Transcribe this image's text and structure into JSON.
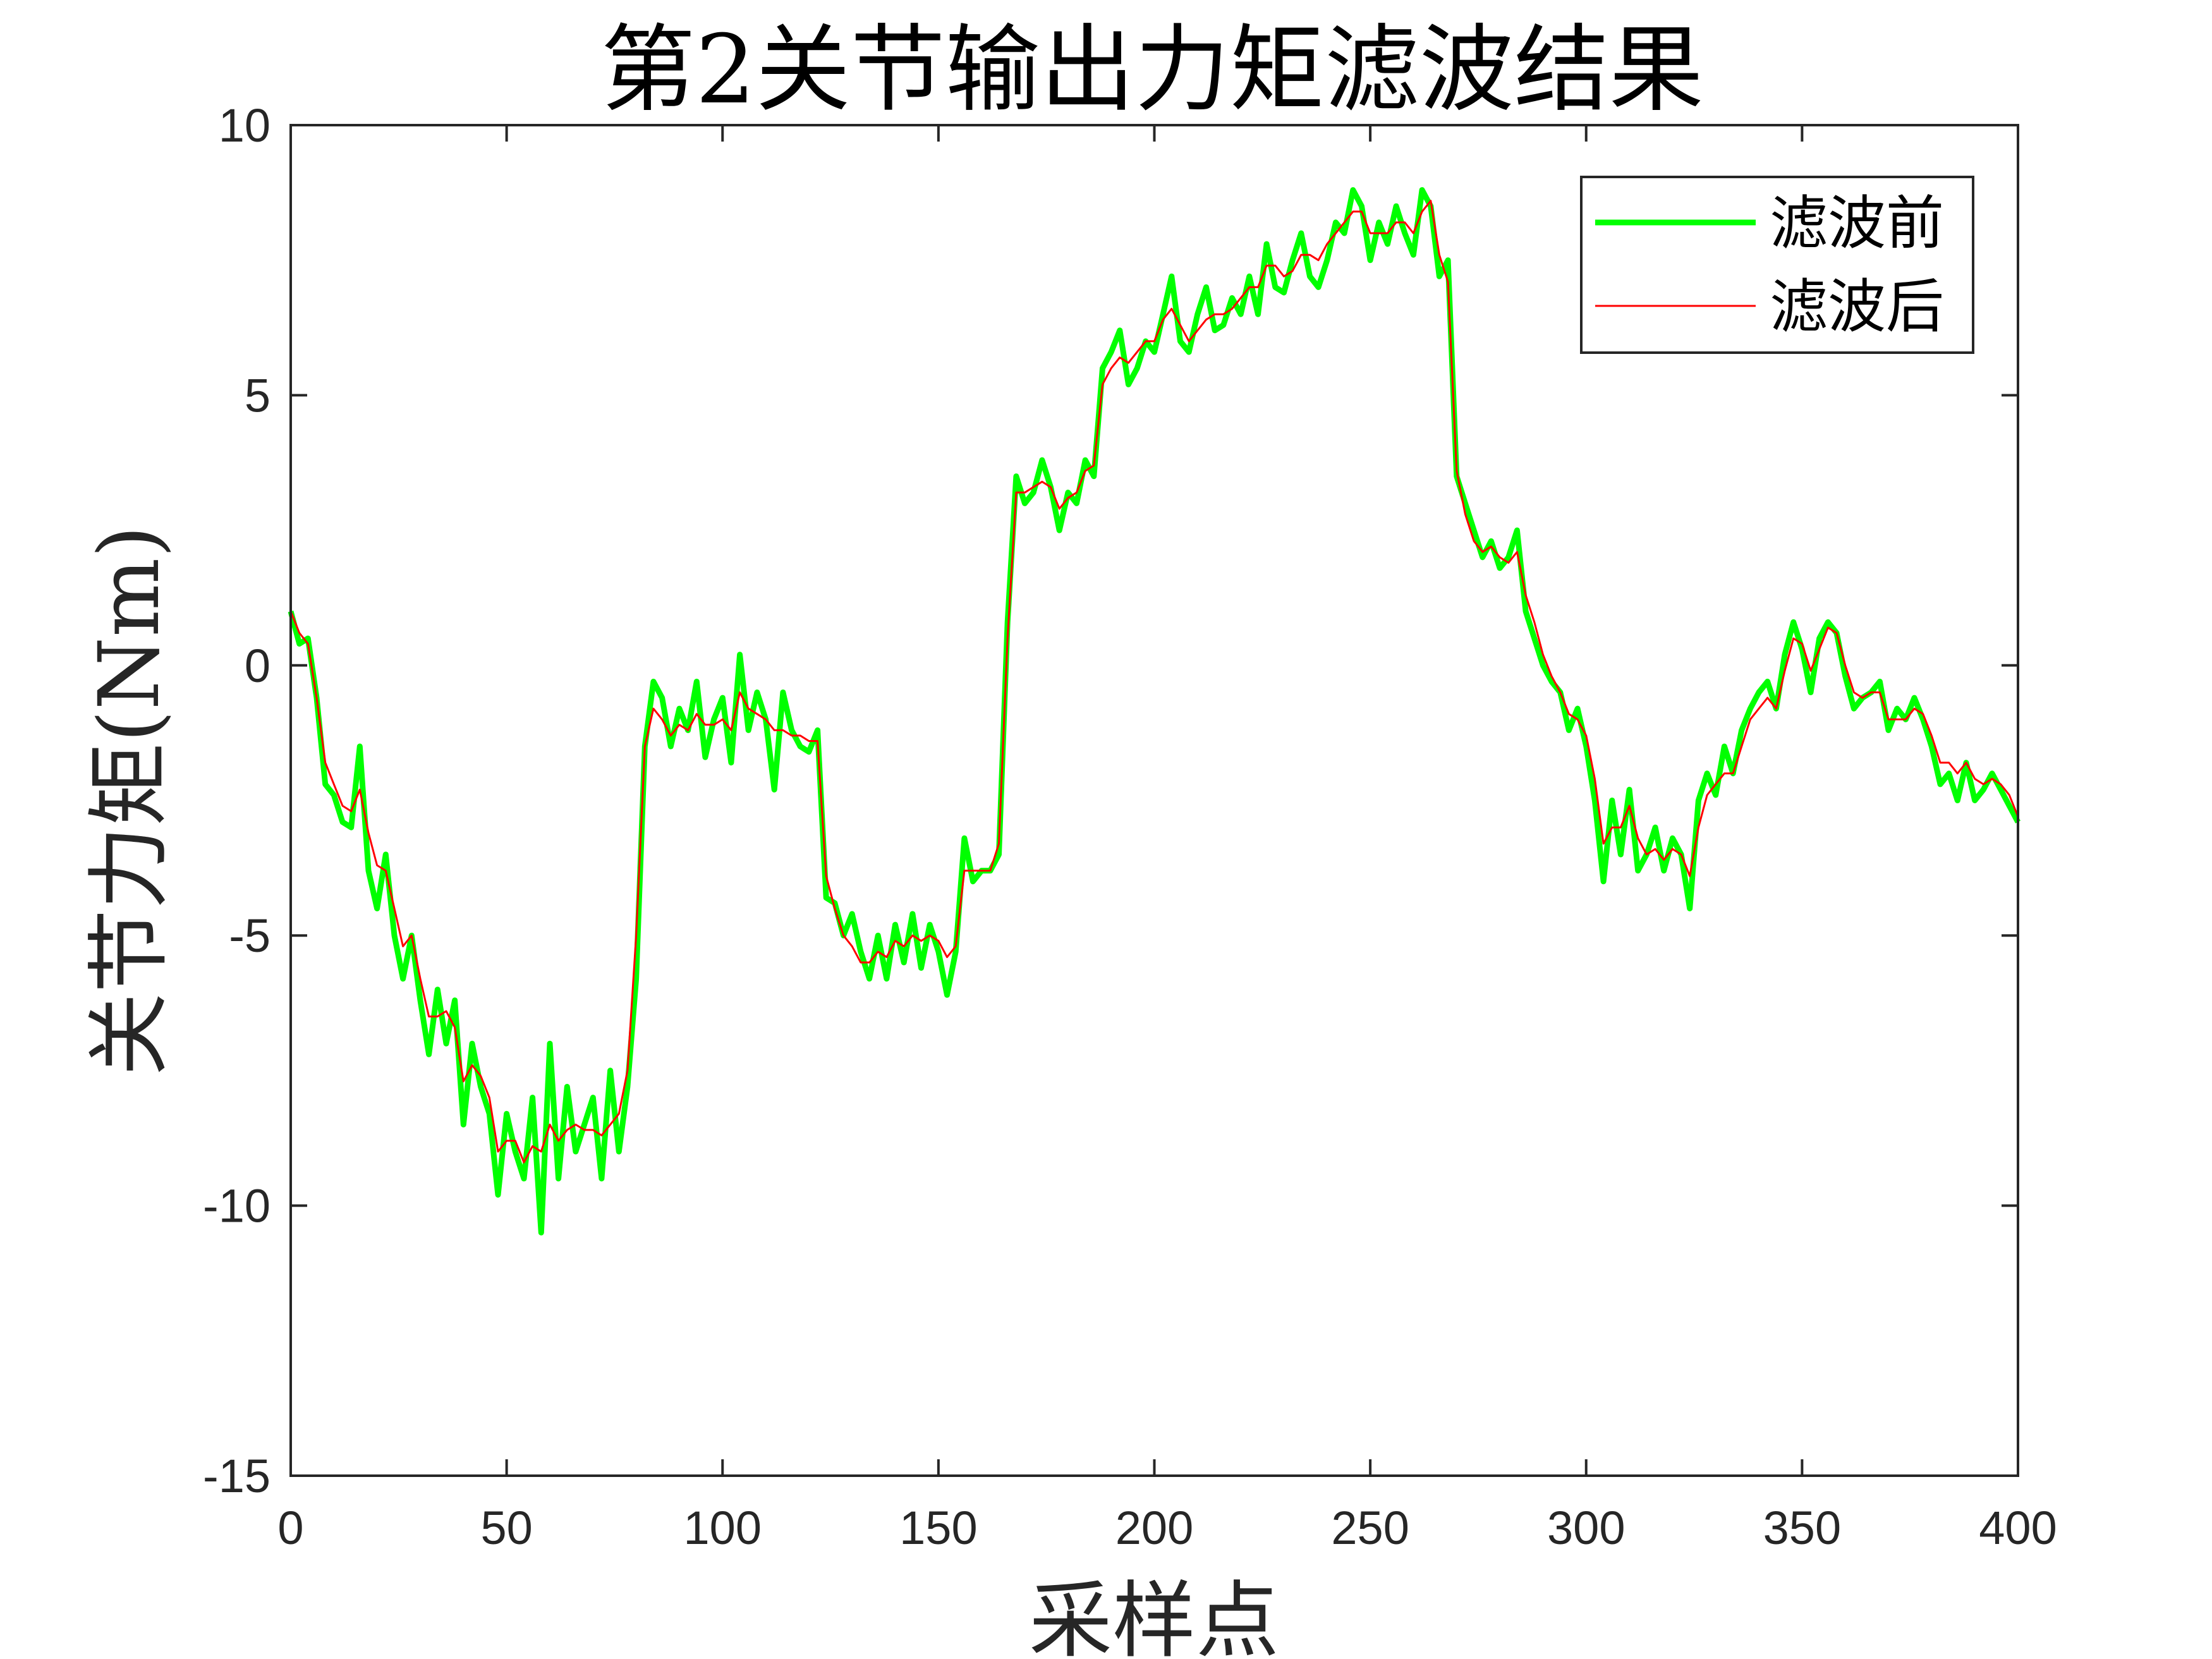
{
  "chart_data": {
    "type": "line",
    "title": "第2关节输出力矩滤波结果",
    "xlabel": "采样点",
    "ylabel": "关节力矩(Nm)",
    "xlim": [
      0,
      400
    ],
    "ylim": [
      -15,
      10
    ],
    "xticks": [
      0,
      50,
      100,
      150,
      200,
      250,
      300,
      350,
      400
    ],
    "yticks": [
      -15,
      -10,
      -5,
      0,
      5,
      10
    ],
    "grid": false,
    "legend_position": "top-right",
    "series": [
      {
        "name": "滤波前",
        "color": "#00FF00",
        "x_step": 2,
        "values": [
          1.0,
          0.4,
          0.5,
          -0.6,
          -2.2,
          -2.4,
          -2.9,
          -3.0,
          -1.5,
          -3.8,
          -4.5,
          -3.5,
          -5.0,
          -5.8,
          -5.0,
          -6.2,
          -7.2,
          -6.0,
          -7.0,
          -6.2,
          -8.5,
          -7.0,
          -7.8,
          -8.3,
          -9.8,
          -8.3,
          -9.0,
          -9.5,
          -8.0,
          -10.5,
          -7.0,
          -9.5,
          -7.8,
          -9.0,
          -8.5,
          -8.0,
          -9.5,
          -7.5,
          -9.0,
          -7.8,
          -5.8,
          -1.5,
          -0.3,
          -0.6,
          -1.5,
          -0.8,
          -1.2,
          -0.3,
          -1.7,
          -1.0,
          -0.6,
          -1.8,
          0.2,
          -1.2,
          -0.5,
          -1.0,
          -2.3,
          -0.5,
          -1.2,
          -1.5,
          -1.6,
          -1.2,
          -4.3,
          -4.4,
          -5.0,
          -4.6,
          -5.3,
          -5.8,
          -5.0,
          -5.8,
          -4.8,
          -5.5,
          -4.6,
          -5.6,
          -4.8,
          -5.3,
          -6.1,
          -5.3,
          -3.2,
          -4.0,
          -3.8,
          -3.8,
          -3.5,
          0.8,
          3.5,
          3.0,
          3.2,
          3.8,
          3.3,
          2.5,
          3.2,
          3.0,
          3.8,
          3.5,
          5.5,
          5.8,
          6.2,
          5.2,
          5.5,
          6.0,
          5.8,
          6.5,
          7.2,
          6.0,
          5.8,
          6.5,
          7.0,
          6.2,
          6.3,
          6.8,
          6.5,
          7.2,
          6.5,
          7.8,
          7.0,
          6.9,
          7.5,
          8.0,
          7.2,
          7.0,
          7.5,
          8.2,
          8.0,
          8.8,
          8.5,
          7.5,
          8.2,
          7.8,
          8.5,
          8.0,
          7.6,
          8.8,
          8.5,
          7.2,
          7.5,
          3.5,
          3.0,
          2.5,
          2.0,
          2.3,
          1.8,
          2.0,
          2.5,
          1.0,
          0.5,
          0.0,
          -0.3,
          -0.5,
          -1.2,
          -0.8,
          -1.5,
          -2.5,
          -4.0,
          -2.5,
          -3.5,
          -2.3,
          -3.8,
          -3.5,
          -3.0,
          -3.8,
          -3.2,
          -3.5,
          -4.5,
          -2.5,
          -2.0,
          -2.4,
          -1.5,
          -2.0,
          -1.2,
          -0.8,
          -0.5,
          -0.3,
          -0.8,
          0.2,
          0.8,
          0.3,
          -0.5,
          0.5,
          0.8,
          0.6,
          -0.2,
          -0.8,
          -0.6,
          -0.5,
          -0.3,
          -1.2,
          -0.8,
          -1.0,
          -0.6,
          -1.0,
          -1.5,
          -2.2,
          -2.0,
          -2.5,
          -1.8,
          -2.5,
          -2.3,
          -2.0,
          -2.3,
          -2.6,
          -2.9
        ]
      },
      {
        "name": "滤波后",
        "color": "#FF0000",
        "x_step": 2,
        "values": [
          1.0,
          0.6,
          0.4,
          -0.6,
          -1.8,
          -2.2,
          -2.6,
          -2.7,
          -2.3,
          -3.1,
          -3.7,
          -3.8,
          -4.5,
          -5.2,
          -5.0,
          -5.8,
          -6.5,
          -6.5,
          -6.4,
          -6.7,
          -7.7,
          -7.4,
          -7.6,
          -8.0,
          -9.0,
          -8.8,
          -8.8,
          -9.2,
          -8.9,
          -9.0,
          -8.5,
          -8.8,
          -8.6,
          -8.5,
          -8.6,
          -8.6,
          -8.7,
          -8.5,
          -8.3,
          -7.5,
          -5.0,
          -1.5,
          -0.8,
          -1.0,
          -1.3,
          -1.1,
          -1.2,
          -0.9,
          -1.1,
          -1.1,
          -1.0,
          -1.2,
          -0.5,
          -0.8,
          -0.9,
          -1.0,
          -1.2,
          -1.2,
          -1.3,
          -1.3,
          -1.4,
          -1.4,
          -3.9,
          -4.5,
          -5.0,
          -5.2,
          -5.5,
          -5.5,
          -5.3,
          -5.4,
          -5.1,
          -5.2,
          -5.0,
          -5.1,
          -5.0,
          -5.1,
          -5.4,
          -5.2,
          -3.8,
          -3.8,
          -3.8,
          -3.8,
          -3.3,
          0.5,
          3.2,
          3.2,
          3.3,
          3.4,
          3.3,
          2.9,
          3.1,
          3.2,
          3.6,
          3.7,
          5.2,
          5.5,
          5.7,
          5.6,
          5.8,
          6.0,
          6.0,
          6.4,
          6.6,
          6.3,
          6.0,
          6.2,
          6.4,
          6.5,
          6.5,
          6.6,
          6.8,
          7.0,
          7.0,
          7.4,
          7.4,
          7.2,
          7.3,
          7.6,
          7.6,
          7.5,
          7.8,
          8.0,
          8.2,
          8.4,
          8.4,
          8.0,
          8.0,
          8.0,
          8.2,
          8.2,
          8.0,
          8.4,
          8.6,
          7.6,
          7.1,
          3.6,
          2.8,
          2.3,
          2.1,
          2.2,
          2.0,
          1.9,
          2.1,
          1.3,
          0.8,
          0.2,
          -0.2,
          -0.5,
          -0.9,
          -1.0,
          -1.3,
          -2.1,
          -3.3,
          -3.0,
          -3.0,
          -2.6,
          -3.2,
          -3.5,
          -3.4,
          -3.6,
          -3.4,
          -3.5,
          -3.9,
          -3.0,
          -2.4,
          -2.2,
          -2.0,
          -2.0,
          -1.5,
          -1.0,
          -0.8,
          -0.6,
          -0.8,
          -0.1,
          0.5,
          0.4,
          -0.1,
          0.3,
          0.7,
          0.6,
          0.0,
          -0.5,
          -0.6,
          -0.5,
          -0.5,
          -1.0,
          -1.0,
          -1.0,
          -0.8,
          -0.9,
          -1.3,
          -1.8,
          -1.8,
          -2.0,
          -1.8,
          -2.1,
          -2.2,
          -2.1,
          -2.2,
          -2.4,
          -2.8
        ]
      }
    ]
  }
}
